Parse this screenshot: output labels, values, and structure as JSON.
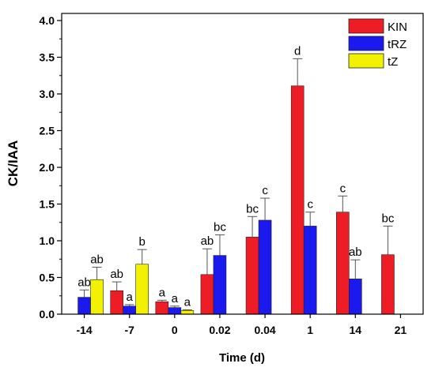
{
  "chart_data": {
    "type": "bar",
    "xlabel": "Time (d)",
    "ylabel": "CK/IAA",
    "ylim": [
      0,
      4.0
    ],
    "yticks": [
      "0.0",
      "0.5",
      "1.0",
      "1.5",
      "2.0",
      "2.5",
      "3.0",
      "3.5",
      "4.0"
    ],
    "categories": [
      "-14",
      "-7",
      "0",
      "0.02",
      "0.04",
      "1",
      "14",
      "21"
    ],
    "legend_position": "top-right",
    "series": [
      {
        "name": "KIN",
        "color": "#ee1c24",
        "values": [
          null,
          0.32,
          0.17,
          0.54,
          1.05,
          3.11,
          1.39,
          0.81
        ],
        "errors": [
          null,
          0.12,
          0.02,
          0.35,
          0.28,
          0.37,
          0.22,
          0.39
        ],
        "labels": [
          "",
          "ab",
          "a",
          "ab",
          "bc",
          "d",
          "c",
          "bc"
        ]
      },
      {
        "name": "tRZ",
        "color": "#1a1aee",
        "values": [
          0.23,
          0.11,
          0.09,
          0.8,
          1.28,
          1.2,
          0.48,
          null
        ],
        "errors": [
          0.1,
          0.02,
          0.02,
          0.28,
          0.3,
          0.19,
          0.26,
          null
        ],
        "labels": [
          "ab",
          "a",
          "a",
          "bc",
          "c",
          "c",
          "ab",
          ""
        ]
      },
      {
        "name": "tZ",
        "color": "#f2f200",
        "values": [
          0.47,
          0.68,
          0.05,
          null,
          null,
          null,
          null,
          null
        ],
        "errors": [
          0.17,
          0.2,
          0.01,
          null,
          null,
          null,
          null,
          null
        ],
        "labels": [
          "ab",
          "b",
          "a",
          "",
          "",
          "",
          "",
          ""
        ]
      }
    ]
  }
}
